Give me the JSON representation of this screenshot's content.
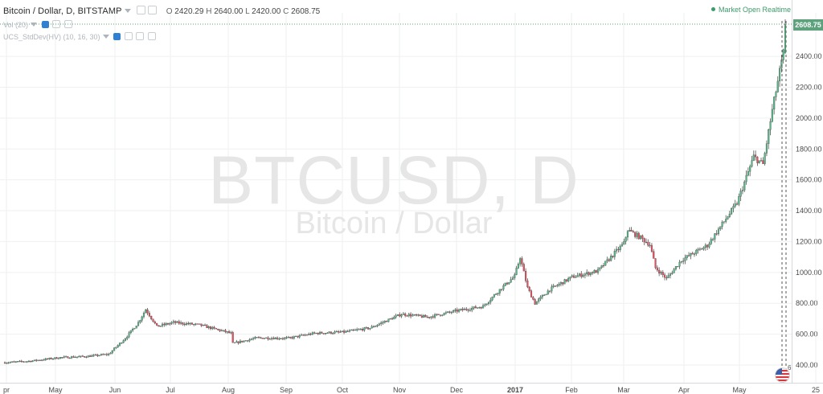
{
  "header": {
    "title": "Bitcoin / Dollar, D, BITSTAMP",
    "ohlc": {
      "o_label": "O",
      "o": "2420.29",
      "h_label": "H",
      "h": "2640.00",
      "l_label": "L",
      "l": "2420.00",
      "c_label": "C",
      "c": "2608.75"
    },
    "indicator1": "Vol (20)",
    "indicator2": "UCS_StdDev(HV) (10, 16, 30)",
    "market_status": "Market Open Realtime"
  },
  "watermark": {
    "symbol": "BTCUSD, D",
    "name": "Bitcoin / Dollar"
  },
  "price_tag": "2608.75",
  "flag_count": "6",
  "colors": {
    "up": "#53b987",
    "down": "#eb4d5c",
    "grid": "#eef0f2",
    "axis_text": "#4a4a4a",
    "last_price": "#5da27d"
  },
  "chart_data": {
    "type": "candlestick",
    "title": "Bitcoin / Dollar, D, BITSTAMP",
    "ylim": [
      300,
      2700
    ],
    "y_ticks": [
      "400.00",
      "600.00",
      "800.00",
      "1000.00",
      "1200.00",
      "1400.00",
      "1600.00",
      "1800.00",
      "2000.00",
      "2200.00",
      "2400.00"
    ],
    "x_ticks": [
      "pr",
      "May",
      "Jun",
      "Jul",
      "Aug",
      "Sep",
      "Oct",
      "Nov",
      "Dec",
      "2017",
      "Feb",
      "Mar",
      "Apr",
      "May",
      "25"
    ],
    "last_price": 2608.75,
    "grid": true,
    "series": [
      {
        "points": [
          [
            "2016-04-01",
            416
          ],
          [
            "2016-04-15",
            426
          ],
          [
            "2016-05-01",
            449
          ],
          [
            "2016-05-15",
            456
          ],
          [
            "2016-05-27",
            470
          ],
          [
            "2016-06-05",
            574
          ],
          [
            "2016-06-12",
            675
          ],
          [
            "2016-06-16",
            760
          ],
          [
            "2016-06-22",
            650
          ],
          [
            "2016-07-01",
            676
          ],
          [
            "2016-07-15",
            660
          ],
          [
            "2016-08-01",
            606
          ],
          [
            "2016-08-02",
            540
          ],
          [
            "2016-08-15",
            576
          ],
          [
            "2016-09-01",
            574
          ],
          [
            "2016-09-15",
            606
          ],
          [
            "2016-10-01",
            614
          ],
          [
            "2016-10-15",
            640
          ],
          [
            "2016-11-01",
            730
          ],
          [
            "2016-11-15",
            710
          ],
          [
            "2016-12-01",
            752
          ],
          [
            "2016-12-15",
            780
          ],
          [
            "2016-12-25",
            900
          ],
          [
            "2017-01-01",
            975
          ],
          [
            "2017-01-04",
            1100
          ],
          [
            "2017-01-08",
            900
          ],
          [
            "2017-01-12",
            800
          ],
          [
            "2017-01-20",
            890
          ],
          [
            "2017-02-01",
            970
          ],
          [
            "2017-02-15",
            1010
          ],
          [
            "2017-03-01",
            1190
          ],
          [
            "2017-03-03",
            1275
          ],
          [
            "2017-03-10",
            1225
          ],
          [
            "2017-03-15",
            1180
          ],
          [
            "2017-03-18",
            1030
          ],
          [
            "2017-03-24",
            960
          ],
          [
            "2017-04-01",
            1080
          ],
          [
            "2017-04-15",
            1175
          ],
          [
            "2017-05-01",
            1450
          ],
          [
            "2017-05-10",
            1750
          ],
          [
            "2017-05-15",
            1700
          ],
          [
            "2017-05-20",
            2050
          ],
          [
            "2017-05-24",
            2300
          ],
          [
            "2017-05-26",
            2420
          ],
          [
            "2017-05-27",
            2608.75
          ]
        ]
      }
    ]
  }
}
